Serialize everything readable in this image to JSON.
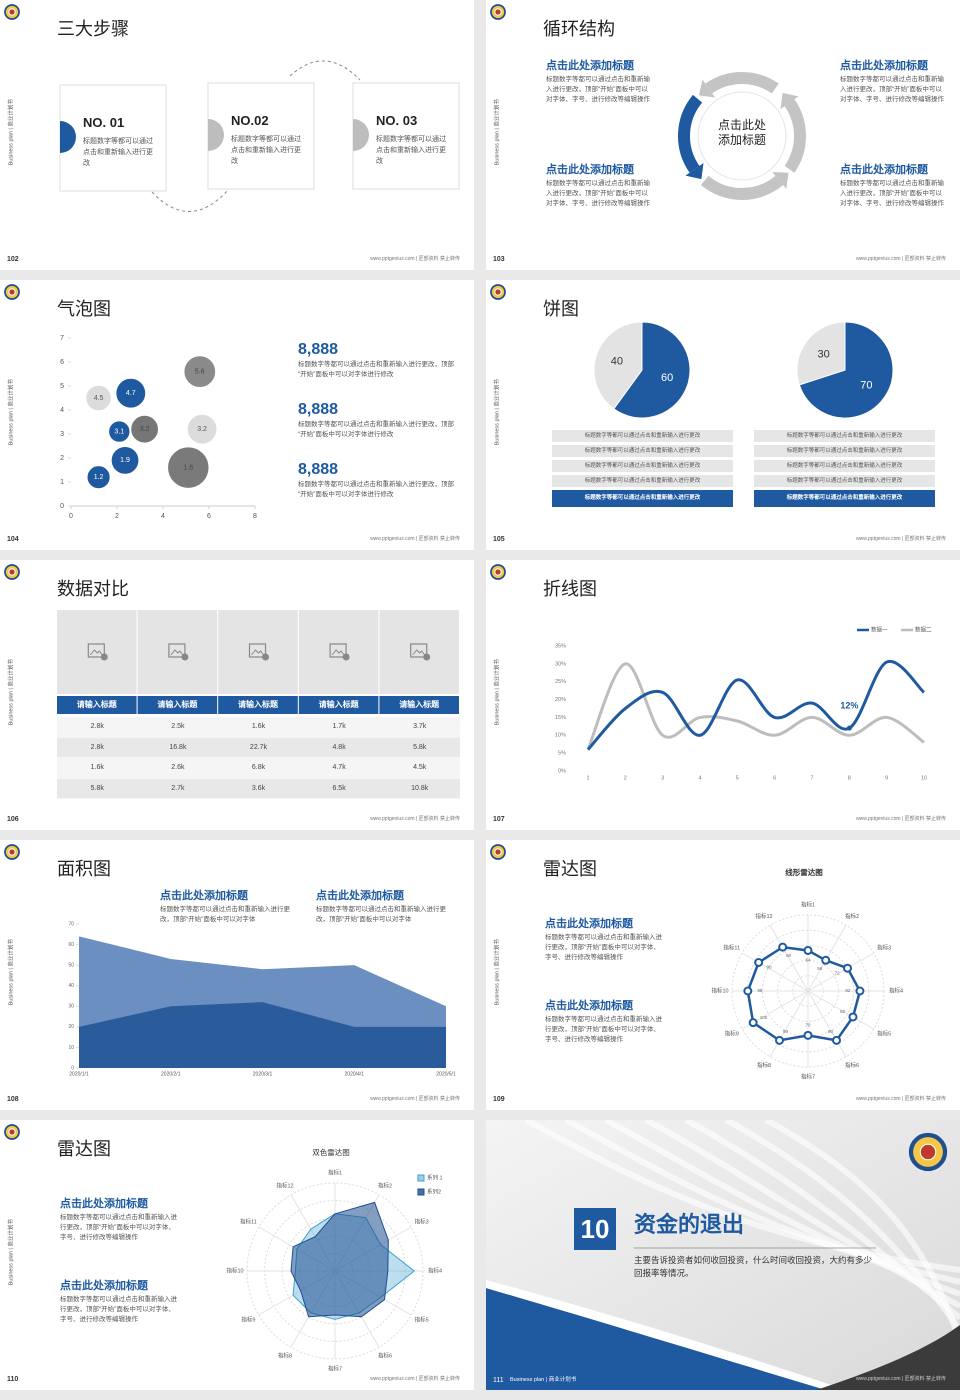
{
  "footer_url": "www.pptgenius.com | 匠部资料 禁止转传",
  "side_label": "Business plan | 商业计划书",
  "slides": [
    {
      "page": "102",
      "title": "三大步骤",
      "steps": [
        {
          "label": "NO. 01",
          "text": "标题数字等都可以通过点击和重新输入进行更改"
        },
        {
          "label": "NO.02",
          "text": "标题数字等都可以通过点击和重新输入进行更改"
        },
        {
          "label": "NO. 03",
          "text": "标题数字等都可以通过点击和重新输入进行更改"
        }
      ]
    },
    {
      "page": "103",
      "title": "循环结构",
      "center": "点击此处添加标题",
      "blocks": [
        {
          "title": "点击此处添加标题",
          "text": "标题数字等都可以通过点击和重新输入进行更改，顶部“开始”面板中可以对字体、字号、进行修改等编辑操作"
        },
        {
          "title": "点击此处添加标题",
          "text": "标题数字等都可以通过点击和重新输入进行更改，顶部“开始”面板中可以对字体、字号、进行修改等编辑操作"
        },
        {
          "title": "点击此处添加标题",
          "text": "标题数字等都可以通过点击和重新输入进行更改，顶部“开始”面板中可以对字体、字号、进行修改等编辑操作"
        },
        {
          "title": "点击此处添加标题",
          "text": "标题数字等都可以通过点击和重新输入进行更改，顶部“开始”面板中可以对字体、字号、进行修改等编辑操作"
        }
      ]
    },
    {
      "page": "104",
      "title": "气泡图",
      "chart_data": {
        "type": "bubble",
        "x": [
          1.2,
          2.35,
          2.1,
          3.2,
          1.2,
          2.6,
          5.6,
          5.7,
          5.1
        ],
        "values": [
          1.2,
          1.9,
          3.1,
          3.2,
          4.5,
          4.7,
          5.6,
          3.2,
          1.6
        ],
        "sizes": [
          1.4,
          2,
          1.2,
          2,
          1.7,
          2.3,
          2.6,
          2.3,
          4.4
        ],
        "colors": [
          "#1f5aa0",
          "#1f5aa0",
          "#1f5aa0",
          "#767676",
          "#dcdcdc",
          "#1f5aa0",
          "#8a8a8a",
          "#dcdcdc",
          "#7a7a7a"
        ],
        "xlim": [
          0,
          8
        ],
        "xticks": [
          0,
          2,
          4,
          6,
          8
        ],
        "ylim": [
          0,
          7
        ],
        "yticks": [
          0,
          1,
          2,
          3,
          4,
          5,
          6,
          7
        ]
      },
      "stats": [
        {
          "value": "8,888",
          "text": "标题数字等都可以通过点击和重新输入进行更改，顶部“开始”面板中可以对字体进行修改"
        },
        {
          "value": "8,888",
          "text": "标题数字等都可以通过点击和重新输入进行更改，顶部“开始”面板中可以对字体进行修改"
        },
        {
          "value": "8,888",
          "text": "标题数字等都可以通过点击和重新输入进行更改，顶部“开始”面板中可以对字体进行修改"
        }
      ]
    },
    {
      "page": "105",
      "title": "饼图",
      "charts": [
        {
          "type": "pie",
          "values": [
            60,
            40
          ],
          "colors": [
            "#1f5aa0",
            "#e3e3e3"
          ],
          "items": [
            "标题数字等都可以通过点击和重新输入进行更改",
            "标题数字等都可以通过点击和重新输入进行更改",
            "标题数字等都可以通过点击和重新输入进行更改",
            "标题数字等都可以通过点击和重新输入进行更改",
            "标题数字等都可以通过点击和重新输入进行更改"
          ]
        },
        {
          "type": "pie",
          "values": [
            70,
            30
          ],
          "colors": [
            "#1f5aa0",
            "#e3e3e3"
          ],
          "items": [
            "标题数字等都可以通过点击和重新输入进行更改",
            "标题数字等都可以通过点击和重新输入进行更改",
            "标题数字等都可以通过点击和重新输入进行更改",
            "标题数字等都可以通过点击和重新输入进行更改",
            "标题数字等都可以通过点击和重新输入进行更改"
          ]
        }
      ]
    },
    {
      "page": "106",
      "title": "数据对比",
      "table": {
        "headers": [
          "请输入标题",
          "请输入标题",
          "请输入标题",
          "请输入标题",
          "请输入标题"
        ],
        "rows": [
          [
            "2.8k",
            "2.5k",
            "1.6k",
            "1.7k",
            "3.7k"
          ],
          [
            "2.8k",
            "16.8k",
            "22.7k",
            "4.8k",
            "5.8k"
          ],
          [
            "1.6k",
            "2.6k",
            "6.8k",
            "4.7k",
            "4.5k"
          ],
          [
            "5.8k",
            "2.7k",
            "3.6k",
            "6.5k",
            "10.8k"
          ]
        ]
      }
    },
    {
      "page": "107",
      "title": "折线图",
      "chart_data": {
        "type": "line",
        "x": [
          1,
          2,
          3,
          4,
          5,
          6,
          7,
          8,
          9,
          10
        ],
        "series": [
          {
            "name": "数据一",
            "color": "#1f5aa0",
            "values": [
              6,
              17.5,
              22,
              10,
              25.5,
              15,
              19,
              12,
              30.5,
              22
            ],
            "value_labels": [
              null,
              null,
              null,
              null,
              null,
              null,
              null,
              "12%",
              null,
              null
            ]
          },
          {
            "name": "数据二",
            "color": "#bdbdbd",
            "values": [
              6,
              30,
              10,
              15,
              14,
              10,
              15,
              10,
              15,
              8
            ]
          }
        ],
        "xlim": [
          1,
          10
        ],
        "xticks": [
          1,
          2,
          3,
          4,
          5,
          6,
          7,
          8,
          9,
          10
        ],
        "ylim": [
          0,
          35
        ],
        "yticks": [
          {
            "value": 0,
            "label": "0%"
          },
          {
            "value": 5,
            "label": "5%"
          },
          {
            "value": 10,
            "label": "10%"
          },
          {
            "value": 15,
            "label": "15%"
          },
          {
            "value": 20,
            "label": "20%"
          },
          {
            "value": 25,
            "label": "25%"
          },
          {
            "value": 30,
            "label": "30%"
          },
          {
            "value": 35,
            "label": "35%"
          }
        ],
        "grid": false,
        "legend": "top-right"
      }
    },
    {
      "page": "108",
      "title": "面积图",
      "chart_data": {
        "type": "area",
        "categories": [
          "2020/1/1",
          "2020/2/1",
          "2020/3/1",
          "2020/4/1",
          "2020/5/1"
        ],
        "series": [
          {
            "color": "#6b8fc0",
            "values": [
              64,
              53,
              48,
              50,
              30
            ]
          },
          {
            "color": "#2a5c9c",
            "values": [
              20,
              30,
              32,
              20,
              20
            ]
          }
        ],
        "ylim": [
          0,
          70
        ],
        "yticks": [
          0,
          10,
          20,
          30,
          40,
          50,
          60,
          70
        ]
      },
      "blocks": [
        {
          "title": "点击此处添加标题",
          "text": "标题数字等都可以通过点击和重新输入进行更改，顶部“开始”面板中可以对字体"
        },
        {
          "title": "点击此处添加标题",
          "text": "标题数字等都可以通过点击和重新输入进行更改，顶部“开始”面板中可以对字体"
        }
      ]
    },
    {
      "page": "109",
      "title": "雷达图",
      "chart_data": {
        "type": "radar",
        "title": "线形雷达图",
        "axes": [
          "指标1",
          "指标2",
          "指标3",
          "指标4",
          "指标5",
          "指标6",
          "指标7",
          "指标8",
          "指标9",
          "指标10",
          "指标11",
          "指标12"
        ],
        "series": [
          {
            "color": "#1f5aa0",
            "values": [
              64,
              56,
              72,
              82,
              82,
              90,
              70,
              90,
              100,
              95,
              90,
              80
            ]
          }
        ],
        "rlim": [
          0,
          120
        ],
        "markers": true,
        "labels": true
      },
      "blocks": [
        {
          "title": "点击此处添加标题",
          "text": "标题数字等都可以通过点击和重新输入进行更改，顶部“开始”面板中可以对字体、字号、进行修改等编辑操作"
        },
        {
          "title": "点击此处添加标题",
          "text": "标题数字等都可以通过点击和重新输入进行更改，顶部“开始”面板中可以对字体、字号、进行修改等编辑操作"
        }
      ]
    },
    {
      "page": "110",
      "title": "雷达图",
      "chart_data": {
        "type": "radar",
        "title": "双色雷达图",
        "axes": [
          "指标1",
          "指标2",
          "指标3",
          "指标4",
          "指标5",
          "指标6",
          "指标7",
          "指标8",
          "指标9",
          "指标10",
          "指标11",
          "指标12"
        ],
        "series": [
          {
            "name": "系列 1",
            "color": "#3ea0d0",
            "values": [
              65,
              70,
              60,
              90,
              60,
              55,
              55,
              55,
              55,
              45,
              50,
              55
            ]
          },
          {
            "name": "系列2",
            "color": "#1f4f8f",
            "values": [
              65,
              90,
              70,
              60,
              65,
              60,
              50,
              60,
              45,
              50,
              55,
              45
            ]
          }
        ],
        "rlim": [
          0,
          100
        ],
        "markers": false,
        "labels": false,
        "legend": "top-right"
      },
      "blocks": [
        {
          "title": "点击此处添加标题",
          "text": "标题数字等都可以通过点击和重新输入进行更改，顶部“开始”面板中可以对字体、字号、进行修改等编辑操作"
        },
        {
          "title": "点击此处添加标题",
          "text": "标题数字等都可以通过点击和重新输入进行更改，顶部“开始”面板中可以对字体、字号、进行修改等编辑操作"
        }
      ]
    },
    {
      "page": "111",
      "number": "10",
      "title": "资金的退出",
      "description": "主要告诉投资者如何收回投资，什么时间收回投资，大约有多少回报率等情况。"
    }
  ]
}
